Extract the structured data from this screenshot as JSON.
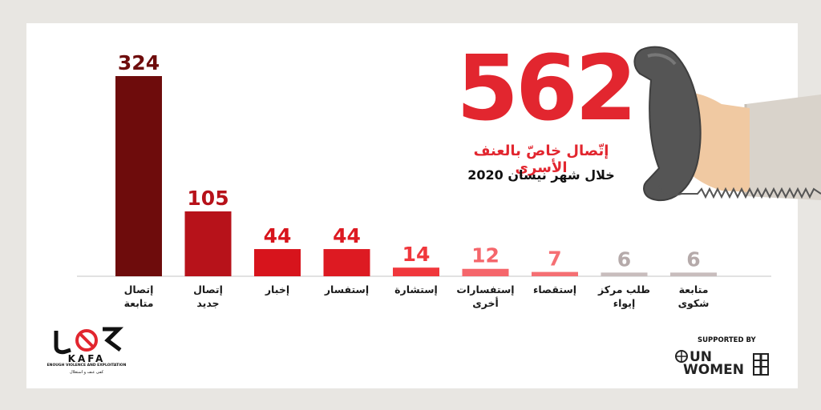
{
  "headline": {
    "total": "562",
    "line1": "إتّصال خاصّ بالعنف الأسري",
    "line2": "خلال شهر نيسان 2020"
  },
  "colors": {
    "accent": "#e2262f",
    "background": "#e8e6e2",
    "card": "#ffffff"
  },
  "chart_data": {
    "type": "bar",
    "categories": [
      [
        "إتصال",
        "متابعة"
      ],
      [
        "إتصال",
        "جديد"
      ],
      [
        "إخبار"
      ],
      [
        "إستفسار"
      ],
      [
        "إستشارة"
      ],
      [
        "إستفسارات",
        "أخرى"
      ],
      [
        "إستقصاء"
      ],
      [
        "طلب مركز",
        "إيواء"
      ],
      [
        "متابعة",
        "شكوى"
      ]
    ],
    "values": [
      324,
      105,
      44,
      44,
      14,
      12,
      7,
      6,
      6
    ],
    "bar_colors": [
      "#6e0c0c",
      "#b7121a",
      "#d7141c",
      "#dd1a22",
      "#f0373c",
      "#f5666b",
      "#f56f73",
      "#c8bdbd",
      "#c8bdbd"
    ],
    "label_colors": [
      "#6e0c0c",
      "#b7121a",
      "#d7141c",
      "#dd1a22",
      "#f0373c",
      "#f5666b",
      "#f56f73",
      "#b5aaaa",
      "#b5aaaa"
    ],
    "ylim": [
      0,
      324
    ],
    "grid": false,
    "legend": "none"
  },
  "logos": {
    "kafa_wordmark": "KAFA",
    "kafa_tagline_en": "ENOUGH VIOLENCE AND EXPLOITATION",
    "kafa_tagline_ar": "كفى عنف و استغلال",
    "supported_by": "SUPPORTED BY",
    "un_text": "UN",
    "women_text": "WOMEN"
  },
  "icons": {
    "phone": "phone-handset-icon",
    "hand": "hand-icon",
    "un_emblem": "un-emblem-icon"
  }
}
